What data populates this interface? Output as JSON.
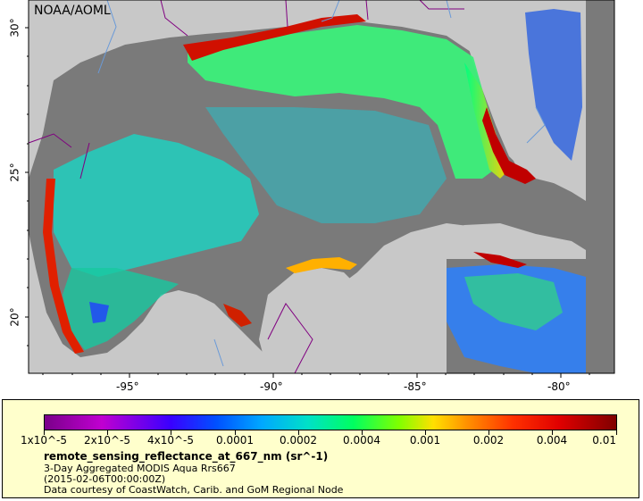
{
  "map": {
    "credit": "NOAA/AOML",
    "longitude_ticks": [
      "-95°",
      "-90°",
      "-85°",
      "-80°"
    ],
    "latitude_ticks": [
      "30°",
      "25°",
      "20°"
    ],
    "colors": {
      "land": "#c8c8c8",
      "no_data_ocean": "#7a7a7a",
      "borders": "#800080",
      "rivers": "#6a9ad8"
    }
  },
  "legend": {
    "scale_labels": [
      "1x10^-5",
      "2x10^-5",
      "4x10^-5",
      "0.0001",
      "0.0002",
      "0.0004",
      "0.001",
      "0.002",
      "0.004",
      "0.01"
    ],
    "variable": "remote_sensing_reflectance_at_667_nm (sr^-1)",
    "product": "3-Day Aggregated MODIS Aqua Rrs667",
    "date": "(2015-02-06T00:00:00Z)",
    "source": "Data courtesy of CoastWatch, Carib. and GoM Regional Node",
    "panel_color": "#ffffcc"
  }
}
